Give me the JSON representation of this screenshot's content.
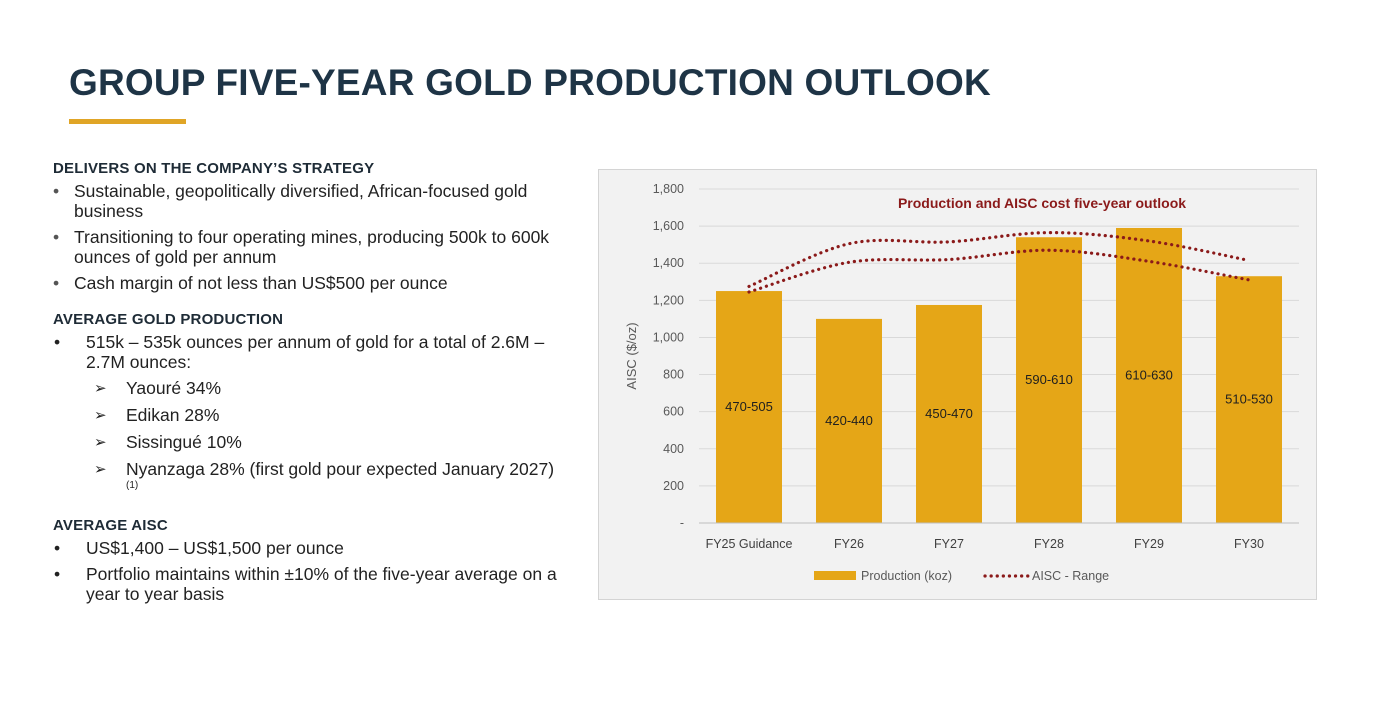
{
  "slide": {
    "title": "GROUP FIVE-YEAR GOLD PRODUCTION OUTLOOK",
    "accent_color": "#e0a526",
    "title_color": "#1e3446"
  },
  "left": {
    "strategy": {
      "heading": "DELIVERS ON THE COMPANY’S STRATEGY",
      "bullets": [
        "Sustainable, geopolitically diversified, African-focused gold business",
        "Transitioning to four operating mines, producing 500k to 600k ounces of gold per annum",
        "Cash margin of not less than US$500 per ounce"
      ]
    },
    "production": {
      "heading": "AVERAGE GOLD PRODUCTION",
      "bullet": "515k – 535k ounces per annum of gold for a total of 2.6M – 2.7M ounces:",
      "mines": [
        "Yaouré  34%",
        "Edikan 28%",
        "Sissingué 10%",
        "Nyanzaga 28%  (first gold pour expected January 2027)"
      ],
      "footnote_marker": "(1)"
    },
    "aisc": {
      "heading": "AVERAGE AISC",
      "bullets": [
        "US$1,400 – US$1,500 per ounce",
        "Portfolio maintains within ±10% of the five-year average on a year to year basis"
      ]
    }
  },
  "chart_data": {
    "type": "bar",
    "title": "Production and AISC cost five-year outlook",
    "ylabel": "AISC ($/oz)",
    "xlabel": "",
    "ylim": [
      0,
      1800
    ],
    "ytick_values": [
      0,
      200,
      400,
      600,
      800,
      1000,
      1200,
      1400,
      1600,
      1800
    ],
    "ytick_labels": [
      "-",
      "200",
      "400",
      "600",
      "800",
      "1,000",
      "1,200",
      "1,400",
      "1,600",
      "1,800"
    ],
    "categories": [
      "FY25 Guidance",
      "FY26",
      "FY27",
      "FY28",
      "FY29",
      "FY30"
    ],
    "grid": true,
    "legend_position": "bottom",
    "series": [
      {
        "name": "Production (koz)",
        "kind": "bar",
        "color": "#e5a617",
        "values": [
          1250,
          1100,
          1175,
          1540,
          1590,
          1330
        ],
        "data_labels": [
          "470-505",
          "420-440",
          "450-470",
          "590-610",
          "610-630",
          "510-530"
        ]
      },
      {
        "name": "AISC - Range",
        "kind": "dotted-line",
        "color": "#8b1a1a",
        "upper": [
          1275,
          1505,
          1515,
          1565,
          1520,
          1415
        ],
        "lower": [
          1245,
          1405,
          1420,
          1470,
          1410,
          1310
        ]
      }
    ],
    "title_color": "#8b1a1a"
  }
}
